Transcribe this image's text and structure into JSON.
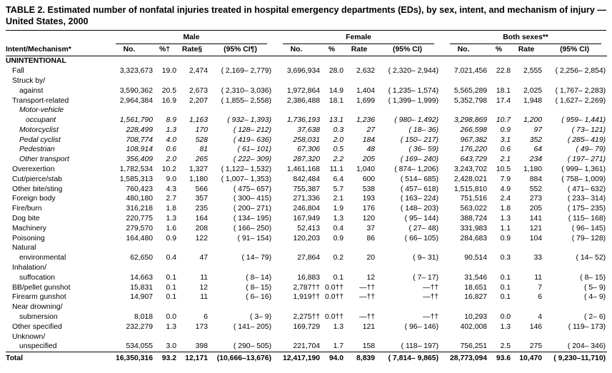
{
  "title": "TABLE 2. Estimated number of nonfatal injuries treated in hospital emergency departments (EDs), by sex, intent, and mechanism of injury — United States, 2000",
  "columns": {
    "intent": "Intent/Mechanism*",
    "groups": [
      {
        "label": "Male",
        "sub": [
          "No.",
          "%†",
          "Rate§",
          "(95% CI¶)"
        ]
      },
      {
        "label": "Female",
        "sub": [
          "No.",
          "%",
          "Rate",
          "(95% CI)"
        ]
      },
      {
        "label": "Both sexes**",
        "sub": [
          "No.",
          "%",
          "Rate",
          "(95% CI)"
        ]
      }
    ]
  },
  "rows": [
    {
      "label": "UNINTENTIONAL",
      "style": "bold",
      "indent": 0,
      "cells": null
    },
    {
      "label": "Fall",
      "indent": 1,
      "cells": [
        "3,323,673",
        "19.0",
        "2,474",
        "( 2,169– 2,779)",
        "3,696,934",
        "28.0",
        "2,632",
        "( 2,320– 2,944)",
        "7,021,456",
        "22.8",
        "2,555",
        "( 2,256– 2,854)"
      ]
    },
    {
      "label": "Struck by/",
      "indent": 1,
      "cells": null
    },
    {
      "label": "against",
      "indent": 2,
      "cells": [
        "3,590,362",
        "20.5",
        "2,673",
        "( 2,310– 3,036)",
        "1,972,864",
        "14.9",
        "1,404",
        "( 1,235– 1,574)",
        "5,565,289",
        "18.1",
        "2,025",
        "( 1,767– 2,283)"
      ]
    },
    {
      "label": "Transport-related",
      "indent": 1,
      "cells": [
        "2,964,384",
        "16.9",
        "2,207",
        "( 1,855– 2,558)",
        "2,386,488",
        "18.1",
        "1,699",
        "( 1,399– 1,999)",
        "5,352,798",
        "17.4",
        "1,948",
        "( 1,627– 2,269)"
      ]
    },
    {
      "label": "Motor-vehicle",
      "style": "italic",
      "indent": 2,
      "cells": null
    },
    {
      "label": "occupant",
      "style": "italic",
      "indent": 3,
      "cells": [
        "1,561,790",
        "8.9",
        "1,163",
        "( 932– 1,393)",
        "1,736,193",
        "13.1",
        "1,236",
        "( 980– 1,492)",
        "3,298,869",
        "10.7",
        "1,200",
        "( 959– 1,441)"
      ]
    },
    {
      "label": "Motorcyclist",
      "style": "italic",
      "indent": 2,
      "cells": [
        "228,499",
        "1.3",
        "170",
        "( 128– 212)",
        "37,638",
        "0.3",
        "27",
        "( 18– 36)",
        "266,598",
        "0.9",
        "97",
        "( 73– 121)"
      ]
    },
    {
      "label": "Pedal cyclist",
      "style": "italic",
      "indent": 2,
      "cells": [
        "708,774",
        "4.0",
        "528",
        "( 419– 636)",
        "258,031",
        "2.0",
        "184",
        "( 150– 217)",
        "967,382",
        "3.1",
        "352",
        "( 285– 419)"
      ]
    },
    {
      "label": "Pedestrian",
      "style": "italic",
      "indent": 2,
      "cells": [
        "108,914",
        "0.6",
        "81",
        "( 61– 101)",
        "67,306",
        "0.5",
        "48",
        "( 36– 59)",
        "176,220",
        "0.6",
        "64",
        "( 49– 79)"
      ]
    },
    {
      "label": "Other transport",
      "style": "italic",
      "indent": 2,
      "cells": [
        "356,409",
        "2.0",
        "265",
        "( 222– 309)",
        "287,320",
        "2.2",
        "205",
        "( 169– 240)",
        "643,729",
        "2.1",
        "234",
        "( 197– 271)"
      ]
    },
    {
      "label": "Overexertion",
      "indent": 1,
      "cells": [
        "1,782,534",
        "10.2",
        "1,327",
        "( 1,122– 1,532)",
        "1,461,168",
        "11.1",
        "1,040",
        "( 874– 1,206)",
        "3,243,702",
        "10.5",
        "1,180",
        "( 999– 1,361)"
      ]
    },
    {
      "label": "Cut/pierce/stab",
      "indent": 1,
      "cells": [
        "1,585,313",
        "9.0",
        "1,180",
        "( 1,007– 1,353)",
        "842,484",
        "6.4",
        "600",
        "( 514– 685)",
        "2,428,021",
        "7.9",
        "884",
        "( 758– 1,009)"
      ]
    },
    {
      "label": "Other bite/sting",
      "indent": 1,
      "cells": [
        "760,423",
        "4.3",
        "566",
        "( 475– 657)",
        "755,387",
        "5.7",
        "538",
        "( 457– 618)",
        "1,515,810",
        "4.9",
        "552",
        "( 471– 632)"
      ]
    },
    {
      "label": "Foreign body",
      "indent": 1,
      "cells": [
        "480,180",
        "2.7",
        "357",
        "( 300– 415)",
        "271,336",
        "2.1",
        "193",
        "( 163– 224)",
        "751,516",
        "2.4",
        "273",
        "( 233– 314)"
      ]
    },
    {
      "label": "Fire/burn",
      "indent": 1,
      "cells": [
        "316,218",
        "1.8",
        "235",
        "( 200– 271)",
        "246,804",
        "1.9",
        "176",
        "( 148– 203)",
        "563,022",
        "1.8",
        "205",
        "( 175– 235)"
      ]
    },
    {
      "label": "Dog bite",
      "indent": 1,
      "cells": [
        "220,775",
        "1.3",
        "164",
        "( 134– 195)",
        "167,949",
        "1.3",
        "120",
        "( 95– 144)",
        "388,724",
        "1.3",
        "141",
        "( 115– 168)"
      ]
    },
    {
      "label": "Machinery",
      "indent": 1,
      "cells": [
        "279,570",
        "1.6",
        "208",
        "( 166– 250)",
        "52,413",
        "0.4",
        "37",
        "( 27– 48)",
        "331,983",
        "1.1",
        "121",
        "( 96– 145)"
      ]
    },
    {
      "label": "Poisoning",
      "indent": 1,
      "cells": [
        "164,480",
        "0.9",
        "122",
        "( 91– 154)",
        "120,203",
        "0.9",
        "86",
        "( 66– 105)",
        "284,683",
        "0.9",
        "104",
        "( 79– 128)"
      ]
    },
    {
      "label": "Natural",
      "indent": 1,
      "cells": null
    },
    {
      "label": "environmental",
      "indent": 2,
      "cells": [
        "62,650",
        "0.4",
        "47",
        "( 14– 79)",
        "27,864",
        "0.2",
        "20",
        "( 9– 31)",
        "90,514",
        "0.3",
        "33",
        "( 14– 52)"
      ]
    },
    {
      "label": "Inhalation/",
      "indent": 1,
      "cells": null
    },
    {
      "label": "suffocation",
      "indent": 2,
      "cells": [
        "14,663",
        "0.1",
        "11",
        "( 8– 14)",
        "16,883",
        "0.1",
        "12",
        "( 7– 17)",
        "31,546",
        "0.1",
        "11",
        "( 8– 15)"
      ]
    },
    {
      "label": "BB/pellet gunshot",
      "indent": 1,
      "cells": [
        "15,831",
        "0.1",
        "12",
        "( 8– 15)",
        "2,787††",
        "0.0††",
        "—††",
        "—††",
        "18,651",
        "0.1",
        "7",
        "( 5– 9)"
      ]
    },
    {
      "label": "Firearm gunshot",
      "indent": 1,
      "cells": [
        "14,907",
        "0.1",
        "11",
        "( 6– 16)",
        "1,919††",
        "0.0††",
        "—††",
        "—††",
        "16,827",
        "0.1",
        "6",
        "( 4– 9)"
      ]
    },
    {
      "label": "Near drowning/",
      "indent": 1,
      "cells": null
    },
    {
      "label": "submersion",
      "indent": 2,
      "cells": [
        "8,018",
        "0.0",
        "6",
        "( 3– 9)",
        "2,275††",
        "0.0††",
        "—††",
        "—††",
        "10,293",
        "0.0",
        "4",
        "( 2– 6)"
      ]
    },
    {
      "label": "Other specified",
      "indent": 1,
      "cells": [
        "232,279",
        "1.3",
        "173",
        "( 141– 205)",
        "169,729",
        "1.3",
        "121",
        "( 96– 146)",
        "402,008",
        "1.3",
        "146",
        "( 119– 173)"
      ]
    },
    {
      "label": "Unknown/",
      "indent": 1,
      "cells": null
    },
    {
      "label": "unspecified",
      "indent": 2,
      "cells": [
        "534,055",
        "3.0",
        "398",
        "( 290– 505)",
        "221,704",
        "1.7",
        "158",
        "( 118– 197)",
        "756,251",
        "2.5",
        "275",
        "( 204– 346)"
      ]
    },
    {
      "label": "Total",
      "style": "total",
      "indent": 0,
      "cells": [
        "16,350,316",
        "93.2",
        "12,171",
        "(10,666–13,676)",
        "12,417,190",
        "94.0",
        "8,839",
        "( 7,814– 9,865)",
        "28,773,094",
        "93.6",
        "10,470",
        "( 9,230–11,710)"
      ]
    }
  ]
}
